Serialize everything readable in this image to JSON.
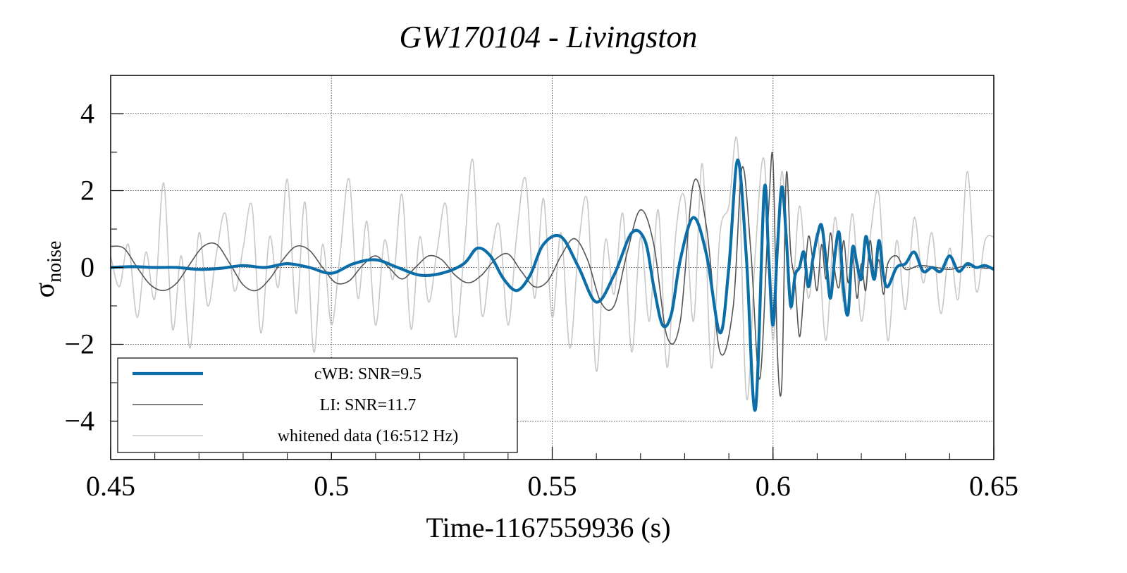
{
  "chart_data": {
    "type": "line",
    "title": "GW170104 - Livingston",
    "xlabel": "Time-1167559936 (s)",
    "ylabel_main": "σ",
    "ylabel_sub": "noise",
    "xlim": [
      0.45,
      0.65
    ],
    "ylim": [
      -5,
      5
    ],
    "xticks": [
      {
        "value": 0.45,
        "label": "0.45"
      },
      {
        "value": 0.5,
        "label": "0.5"
      },
      {
        "value": 0.55,
        "label": "0.55"
      },
      {
        "value": 0.6,
        "label": "0.6"
      },
      {
        "value": 0.65,
        "label": "0.65"
      }
    ],
    "yticks": [
      {
        "value": 4,
        "label": "4"
      },
      {
        "value": 2,
        "label": "2"
      },
      {
        "value": 0,
        "label": "0"
      },
      {
        "value": -2,
        "label": "−2"
      },
      {
        "value": -4,
        "label": "−4"
      }
    ],
    "grid": true,
    "legend_position": "bottom-left",
    "series": [
      {
        "name": "whitened data (16:512 Hz)",
        "color": "#c8c8c8",
        "x": [
          0.45,
          0.452,
          0.454,
          0.456,
          0.458,
          0.46,
          0.462,
          0.464,
          0.466,
          0.468,
          0.47,
          0.472,
          0.474,
          0.476,
          0.478,
          0.48,
          0.482,
          0.484,
          0.486,
          0.488,
          0.49,
          0.492,
          0.494,
          0.496,
          0.498,
          0.5,
          0.502,
          0.504,
          0.506,
          0.508,
          0.51,
          0.512,
          0.514,
          0.516,
          0.518,
          0.52,
          0.522,
          0.524,
          0.526,
          0.528,
          0.53,
          0.532,
          0.534,
          0.536,
          0.538,
          0.54,
          0.542,
          0.544,
          0.546,
          0.548,
          0.55,
          0.552,
          0.554,
          0.556,
          0.558,
          0.56,
          0.562,
          0.564,
          0.566,
          0.568,
          0.57,
          0.572,
          0.574,
          0.576,
          0.578,
          0.58,
          0.582,
          0.584,
          0.586,
          0.588,
          0.59,
          0.592,
          0.594,
          0.596,
          0.598,
          0.6,
          0.602,
          0.604,
          0.606,
          0.608,
          0.61,
          0.612,
          0.614,
          0.616,
          0.618,
          0.62,
          0.622,
          0.624,
          0.626,
          0.628,
          0.63,
          0.632,
          0.634,
          0.636,
          0.638,
          0.64,
          0.642,
          0.644,
          0.646,
          0.648,
          0.65
        ],
        "y": [
          0.3,
          -0.5,
          0.6,
          -1.3,
          0.4,
          -0.8,
          2.2,
          -1.6,
          0.3,
          -2.1,
          0.9,
          -1.0,
          0.4,
          1.4,
          -0.6,
          0.5,
          1.6,
          -1.7,
          0.8,
          -0.5,
          2.3,
          -1.2,
          1.7,
          -2.2,
          0.6,
          -1.5,
          0.4,
          2.3,
          -0.8,
          1.2,
          -1.5,
          0.7,
          -0.3,
          1.9,
          -1.6,
          0.8,
          -0.9,
          0.5,
          1.6,
          -1.8,
          0.3,
          2.8,
          -1.2,
          0.2,
          1.1,
          -1.5,
          0.9,
          2.3,
          -0.8,
          1.8,
          -1.3,
          0.9,
          -2.1,
          0.6,
          1.7,
          -2.7,
          0.7,
          -0.7,
          1.4,
          -2.2,
          0.8,
          -1.4,
          1.5,
          -2.6,
          0.9,
          1.8,
          -1.4,
          2.7,
          -2.6,
          0.9,
          1.6,
          3.2,
          -3.4,
          0.4,
          2.8,
          -1.9,
          2.5,
          -1.1,
          1.6,
          -0.8,
          0.9,
          -1.9,
          1.3,
          -0.9,
          1.4,
          -1.4,
          0.8,
          1.9,
          -1.9,
          0.7,
          -1.1,
          1.3,
          -0.4,
          0.9,
          -1.2,
          0.5,
          -0.8,
          2.5,
          -0.6,
          0.7,
          0.8
        ]
      },
      {
        "name": "LI: SNR=11.7",
        "color": "#555555",
        "x": [
          0.45,
          0.453,
          0.456,
          0.459,
          0.462,
          0.465,
          0.468,
          0.471,
          0.474,
          0.477,
          0.48,
          0.483,
          0.486,
          0.489,
          0.492,
          0.495,
          0.498,
          0.501,
          0.504,
          0.507,
          0.51,
          0.513,
          0.516,
          0.519,
          0.522,
          0.525,
          0.528,
          0.531,
          0.534,
          0.537,
          0.54,
          0.543,
          0.546,
          0.549,
          0.552,
          0.555,
          0.558,
          0.561,
          0.564,
          0.567,
          0.57,
          0.573,
          0.576,
          0.579,
          0.582,
          0.585,
          0.588,
          0.591,
          0.593,
          0.595,
          0.597,
          0.599,
          0.6,
          0.601,
          0.602,
          0.603,
          0.604,
          0.605,
          0.606,
          0.607,
          0.608,
          0.609,
          0.61,
          0.611,
          0.612,
          0.613,
          0.614,
          0.615,
          0.616,
          0.617,
          0.618,
          0.619,
          0.62,
          0.621,
          0.622,
          0.623,
          0.624,
          0.625,
          0.626,
          0.628,
          0.63,
          0.633,
          0.636,
          0.64,
          0.644,
          0.648,
          0.65
        ],
        "y": [
          0.55,
          0.5,
          0.0,
          -0.45,
          -0.6,
          -0.4,
          0.1,
          0.55,
          0.6,
          0.1,
          -0.45,
          -0.6,
          -0.3,
          0.2,
          0.55,
          0.45,
          0.0,
          -0.4,
          -0.35,
          0.05,
          0.3,
          0.0,
          -0.3,
          0.0,
          0.3,
          0.2,
          -0.2,
          -0.4,
          -0.2,
          0.2,
          0.35,
          -0.1,
          -0.5,
          -0.35,
          0.3,
          0.75,
          0.2,
          -0.9,
          -1.0,
          0.4,
          1.5,
          0.6,
          -1.8,
          -1.4,
          2.2,
          1.0,
          -2.2,
          -1.0,
          2.6,
          0.4,
          -2.9,
          1.5,
          2.8,
          -2.2,
          -3.0,
          2.4,
          0.4,
          -0.4,
          -1.8,
          -0.6,
          0.8,
          0.2,
          -0.6,
          0.6,
          -0.3,
          0.9,
          -0.1,
          -0.5,
          0.7,
          -0.4,
          0.4,
          -0.8,
          0.1,
          -0.6,
          0.7,
          -0.3,
          0.2,
          -0.7,
          0.1,
          0.3,
          -0.05,
          0.05,
          0.02,
          -0.05,
          0.05,
          -0.02,
          0.0
        ]
      },
      {
        "name": "cWB: SNR=9.5",
        "color": "#0c6ea8",
        "x": [
          0.45,
          0.455,
          0.46,
          0.465,
          0.47,
          0.475,
          0.48,
          0.485,
          0.49,
          0.495,
          0.5,
          0.505,
          0.51,
          0.515,
          0.52,
          0.525,
          0.53,
          0.533,
          0.536,
          0.539,
          0.542,
          0.545,
          0.548,
          0.552,
          0.556,
          0.56,
          0.564,
          0.568,
          0.571,
          0.573,
          0.575,
          0.577,
          0.579,
          0.582,
          0.585,
          0.588,
          0.59,
          0.592,
          0.594,
          0.596,
          0.598,
          0.599,
          0.6,
          0.601,
          0.602,
          0.603,
          0.604,
          0.605,
          0.606,
          0.607,
          0.608,
          0.609,
          0.61,
          0.611,
          0.612,
          0.613,
          0.614,
          0.615,
          0.616,
          0.617,
          0.618,
          0.619,
          0.62,
          0.621,
          0.622,
          0.623,
          0.624,
          0.625,
          0.626,
          0.628,
          0.63,
          0.632,
          0.634,
          0.636,
          0.638,
          0.64,
          0.642,
          0.644,
          0.646,
          0.648,
          0.65
        ],
        "y": [
          0.0,
          0.02,
          0.0,
          0.0,
          -0.05,
          -0.02,
          0.05,
          0.0,
          0.1,
          0.0,
          -0.15,
          0.1,
          0.2,
          0.0,
          -0.2,
          -0.15,
          0.1,
          0.5,
          0.3,
          -0.3,
          -0.6,
          -0.2,
          0.6,
          0.8,
          0.0,
          -0.9,
          -0.2,
          0.9,
          0.7,
          -0.5,
          -1.5,
          -1.2,
          0.2,
          1.3,
          0.3,
          -1.7,
          0.0,
          2.8,
          0.2,
          -3.7,
          2.0,
          0.3,
          -1.5,
          0.5,
          2.1,
          0.8,
          -1.0,
          -0.2,
          0.0,
          0.4,
          -0.5,
          0.2,
          0.8,
          1.1,
          0.2,
          -0.8,
          0.3,
          0.9,
          -0.6,
          -1.2,
          0.5,
          0.1,
          -0.3,
          0.8,
          0.2,
          -0.3,
          0.7,
          -0.2,
          -0.5,
          0.0,
          0.1,
          0.4,
          -0.1,
          0.0,
          -0.1,
          0.3,
          -0.1,
          0.1,
          0.0,
          0.05,
          -0.05
        ]
      }
    ]
  }
}
